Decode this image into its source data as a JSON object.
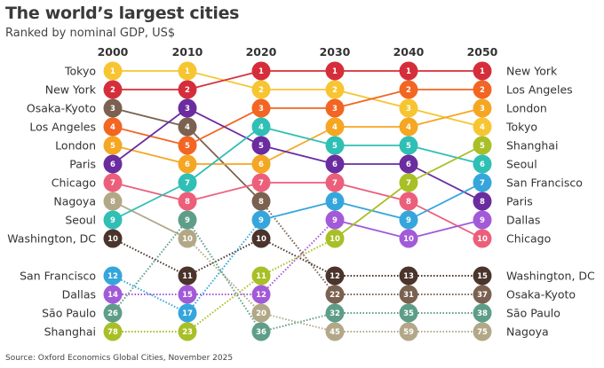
{
  "title": "The world’s largest cities",
  "subtitle": "Ranked by nominal GDP, US$",
  "source": "Source: Oxford Economics Global Cities, November 2025",
  "chart_data": {
    "type": "bump",
    "title": "The world’s largest cities",
    "subtitle": "Ranked by nominal GDP, US$",
    "x": [
      "2000",
      "2010",
      "2020",
      "2030",
      "2040",
      "2050"
    ],
    "top_n_solid": 10,
    "note": "Ranks above 10 shown below a gap with dotted connectors",
    "series": [
      {
        "name": "Tokyo",
        "color": "#f7c531",
        "ranks": [
          1,
          1,
          2,
          2,
          3,
          4
        ]
      },
      {
        "name": "New York",
        "color": "#d52e3a",
        "ranks": [
          2,
          2,
          1,
          1,
          1,
          1
        ]
      },
      {
        "name": "Osaka-Kyoto",
        "color": "#7a6150",
        "ranks": [
          3,
          4,
          8,
          22,
          31,
          37
        ]
      },
      {
        "name": "Los Angeles",
        "color": "#f26522",
        "ranks": [
          4,
          5,
          3,
          3,
          2,
          2
        ]
      },
      {
        "name": "London",
        "color": "#f5a623",
        "ranks": [
          5,
          6,
          6,
          4,
          4,
          3
        ]
      },
      {
        "name": "Paris",
        "color": "#6a2c9f",
        "ranks": [
          6,
          3,
          5,
          6,
          6,
          8
        ]
      },
      {
        "name": "Chicago",
        "color": "#ec5f7a",
        "ranks": [
          7,
          8,
          7,
          7,
          8,
          10
        ]
      },
      {
        "name": "Nagoya",
        "color": "#b2a888",
        "ranks": [
          8,
          10,
          20,
          45,
          59,
          75
        ]
      },
      {
        "name": "Seoul",
        "color": "#2fbfb5",
        "ranks": [
          9,
          7,
          4,
          5,
          5,
          6
        ]
      },
      {
        "name": "Washington, DC",
        "color": "#4a342b",
        "ranks": [
          10,
          11,
          10,
          12,
          13,
          15
        ]
      },
      {
        "name": "San Francisco",
        "color": "#35a6dc",
        "ranks": [
          12,
          17,
          9,
          8,
          9,
          7
        ]
      },
      {
        "name": "Dallas",
        "color": "#a25ad8",
        "ranks": [
          14,
          15,
          12,
          9,
          10,
          9
        ]
      },
      {
        "name": "São Paulo",
        "color": "#5e9e88",
        "ranks": [
          26,
          9,
          36,
          32,
          35,
          38
        ]
      },
      {
        "name": "Shanghai",
        "color": "#a9bf26",
        "ranks": [
          78,
          23,
          11,
          10,
          7,
          5
        ]
      }
    ],
    "left_labels": [
      "Tokyo",
      "New York",
      "Osaka-Kyoto",
      "Los Angeles",
      "London",
      "Paris",
      "Chicago",
      "Nagoya",
      "Seoul",
      "Washington, DC",
      "San Francisco",
      "Dallas",
      "São Paulo",
      "Shanghai"
    ],
    "right_labels": [
      "New York",
      "Los Angeles",
      "London",
      "Tokyo",
      "Shanghai",
      "Seoul",
      "San Francisco",
      "Paris",
      "Dallas",
      "Chicago",
      "Washington, DC",
      "Osaka-Kyoto",
      "São Paulo",
      "Nagoya"
    ],
    "legend": "none",
    "grid": false
  }
}
